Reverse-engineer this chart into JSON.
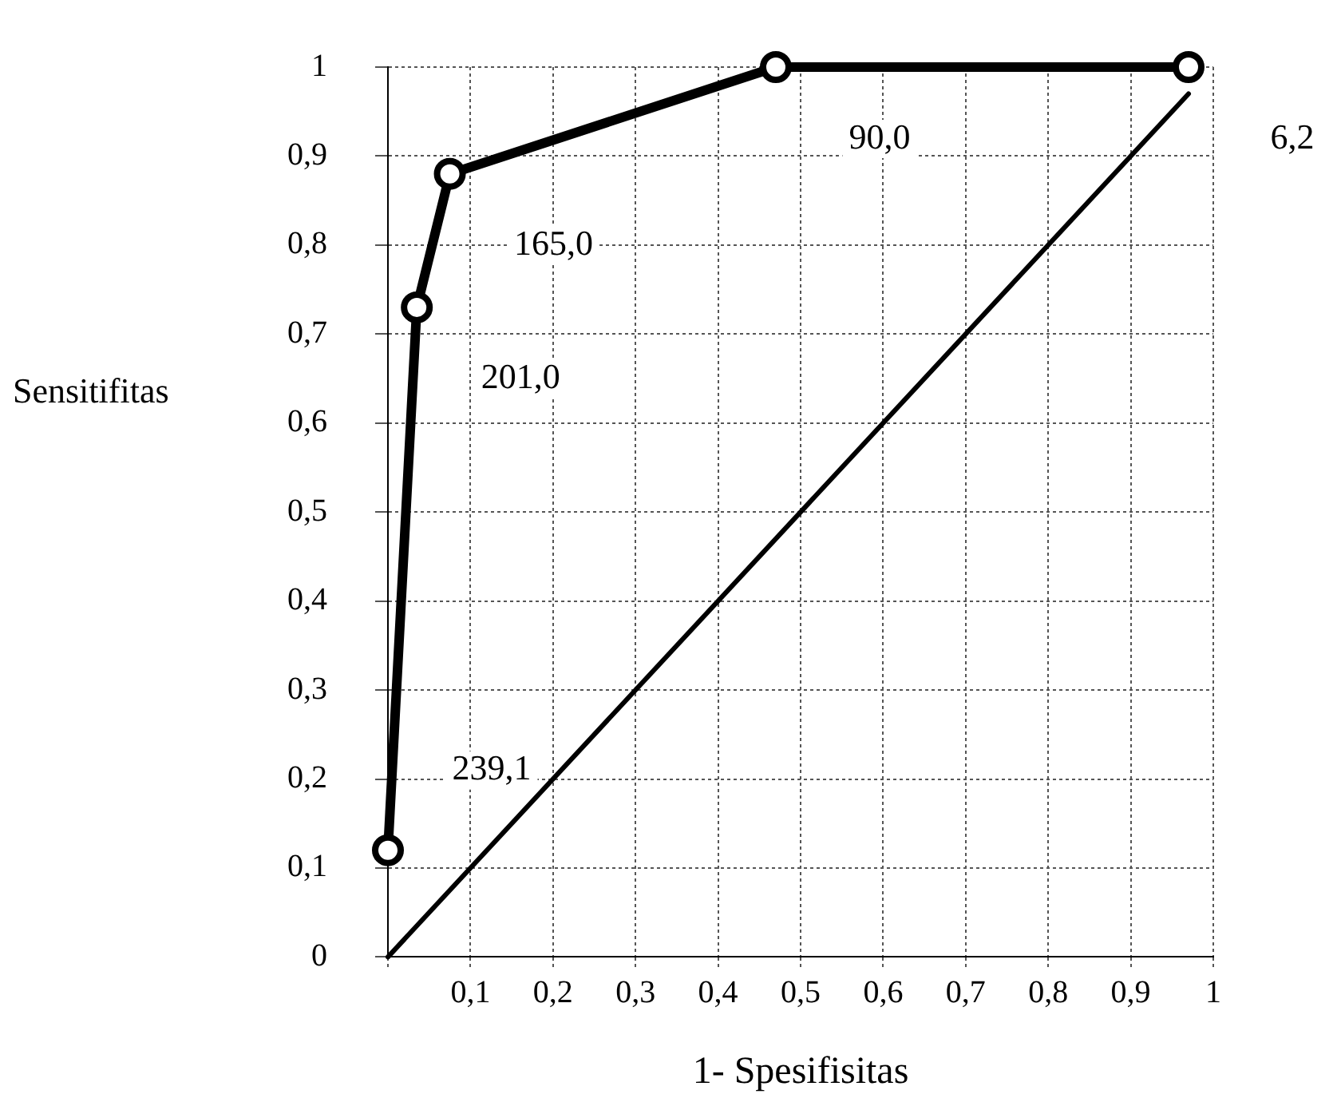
{
  "chart_data": {
    "type": "line",
    "xlabel": "1- Spesifisitas",
    "ylabel": "Sensitifitas",
    "xlim": [
      0,
      1
    ],
    "ylim": [
      0,
      1
    ],
    "xticks": [
      {
        "value": 0,
        "label": null
      },
      {
        "value": 0.1,
        "label": "0,1"
      },
      {
        "value": 0.2,
        "label": "0,2"
      },
      {
        "value": 0.3,
        "label": "0,3"
      },
      {
        "value": 0.4,
        "label": "0,4"
      },
      {
        "value": 0.5,
        "label": "0,5"
      },
      {
        "value": 0.6,
        "label": "0,6"
      },
      {
        "value": 0.7,
        "label": "0,7"
      },
      {
        "value": 0.8,
        "label": "0,8"
      },
      {
        "value": 0.9,
        "label": "0,9"
      },
      1
    ],
    "yticks": [
      0,
      {
        "value": 0.1,
        "label": "0,1"
      },
      {
        "value": 0.2,
        "label": "0,2"
      },
      {
        "value": 0.3,
        "label": "0,3"
      },
      {
        "value": 0.4,
        "label": "0,4"
      },
      {
        "value": 0.5,
        "label": "0,5"
      },
      {
        "value": 0.6,
        "label": "0,6"
      },
      {
        "value": 0.7,
        "label": "0,7"
      },
      {
        "value": 0.8,
        "label": "0,8"
      },
      {
        "value": 0.9,
        "label": "0,9"
      },
      1
    ],
    "series": [
      {
        "color": "#000000",
        "x": [
          0,
          0.035,
          0.075,
          0.47,
          0.97
        ],
        "values": [
          0.12,
          0.73,
          0.88,
          1,
          1
        ],
        "marker": "circle"
      },
      {
        "color": "#000000",
        "x": [
          0,
          0.97
        ],
        "values": [
          0,
          0.97
        ],
        "marker": "none"
      }
    ],
    "annotations": [
      {
        "text": "239,1",
        "x": 0,
        "y": 0.12
      },
      {
        "text": "201,0",
        "x": 0.035,
        "y": 0.73
      },
      {
        "text": "165,0",
        "x": 0.075,
        "y": 0.88
      },
      {
        "text": "90,0",
        "x": 0.47,
        "y": 1
      },
      {
        "text": "6,2",
        "x": 0.97,
        "y": 1
      }
    ],
    "grid": true,
    "legend": false,
    "line_style": "solid"
  }
}
